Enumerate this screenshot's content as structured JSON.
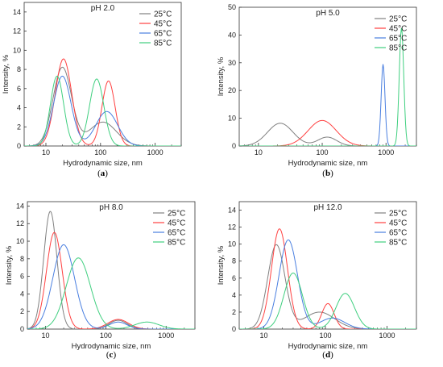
{
  "colors": {
    "25": "#808080",
    "45": "#ff4040",
    "65": "#4a7fe0",
    "85": "#3fcf7f"
  },
  "chart_data": [
    {
      "type": "line",
      "panel": "a",
      "title": "pH 2.0",
      "caption": "a",
      "xlabel": "Hydrodynamic size, nm",
      "ylabel": "Intensity, %",
      "xscale": "log",
      "xlim": [
        4,
        3000
      ],
      "ylim": [
        0,
        15
      ],
      "xticks": [
        {
          "v": 10,
          "label": "10"
        },
        {
          "v": 100,
          "label": "100"
        },
        {
          "v": 1000,
          "label": "1000"
        }
      ],
      "yticks": [
        0,
        2,
        4,
        6,
        8,
        10,
        12,
        14
      ],
      "legend_position": "top-right",
      "series": [
        {
          "name": "25°C",
          "color": "#808080",
          "peaks": [
            [
              20,
              8.2,
              0.17
            ],
            [
              110,
              2.5,
              0.25
            ]
          ]
        },
        {
          "name": "45°C",
          "color": "#ff4040",
          "peaks": [
            [
              21,
              9.1,
              0.15
            ],
            [
              140,
              6.8,
              0.12
            ]
          ]
        },
        {
          "name": "65°C",
          "color": "#4a7fe0",
          "peaks": [
            [
              20,
              7.3,
              0.16
            ],
            [
              130,
              3.6,
              0.2
            ]
          ]
        },
        {
          "name": "85°C",
          "color": "#3fcf7f",
          "peaks": [
            [
              16,
              7.3,
              0.12
            ],
            [
              85,
              7.0,
              0.13
            ]
          ]
        }
      ]
    },
    {
      "type": "line",
      "panel": "b",
      "title": "pH 5.0",
      "caption": "b",
      "xlabel": "Hydrodynamic size, nm",
      "ylabel": "Intensity, %",
      "xscale": "log",
      "xlim": [
        5,
        3000
      ],
      "ylim": [
        0,
        50
      ],
      "xticks": [
        {
          "v": 10,
          "label": "10"
        },
        {
          "v": 100,
          "label": "100"
        },
        {
          "v": 1000,
          "label": "1000"
        }
      ],
      "yticks": [
        0,
        10,
        20,
        30,
        40,
        50
      ],
      "legend_position": "top-right",
      "series": [
        {
          "name": "25°C",
          "color": "#808080",
          "peaks": [
            [
              22,
              8.2,
              0.2
            ],
            [
              120,
              3.2,
              0.15
            ]
          ]
        },
        {
          "name": "45°C",
          "color": "#ff4040",
          "peaks": [
            [
              100,
              9.2,
              0.22
            ]
          ]
        },
        {
          "name": "65°C",
          "color": "#4a7fe0",
          "peaks": [
            [
              900,
              29.5,
              0.03
            ]
          ]
        },
        {
          "name": "85°C",
          "color": "#3fcf7f",
          "peaks": [
            [
              1750,
              42.5,
              0.035
            ]
          ]
        }
      ]
    },
    {
      "type": "line",
      "panel": "c",
      "title": "pH 8.0",
      "caption": "c",
      "xlabel": "Hydrodynamic size, nm",
      "ylabel": "Intensity, %",
      "xscale": "log",
      "xlim": [
        5,
        3000
      ],
      "ylim": [
        0,
        14.5
      ],
      "xticks": [
        {
          "v": 10,
          "label": "10"
        },
        {
          "v": 100,
          "label": "100"
        },
        {
          "v": 1000,
          "label": "1000"
        }
      ],
      "yticks": [
        0,
        2,
        4,
        6,
        8,
        10,
        12,
        14
      ],
      "legend_position": "top-right",
      "series": [
        {
          "name": "25°C",
          "color": "#808080",
          "peaks": [
            [
              12,
              13.4,
              0.11
            ],
            [
              160,
              1.0,
              0.15
            ]
          ]
        },
        {
          "name": "45°C",
          "color": "#ff4040",
          "peaks": [
            [
              14,
              11.0,
              0.13
            ],
            [
              160,
              1.1,
              0.17
            ]
          ]
        },
        {
          "name": "65°C",
          "color": "#4a7fe0",
          "peaks": [
            [
              20,
              9.6,
              0.18
            ],
            [
              160,
              0.8,
              0.15
            ]
          ]
        },
        {
          "name": "85°C",
          "color": "#3fcf7f",
          "peaks": [
            [
              35,
              8.1,
              0.2
            ],
            [
              480,
              0.8,
              0.2
            ]
          ]
        }
      ]
    },
    {
      "type": "line",
      "panel": "d",
      "title": "pH 12.0",
      "caption": "d",
      "xlabel": "Hydrodynamic size, nm",
      "ylabel": "Intensity, %",
      "xscale": "log",
      "xlim": [
        4,
        3000
      ],
      "ylim": [
        0,
        15
      ],
      "xticks": [
        {
          "v": 10,
          "label": "10"
        },
        {
          "v": 100,
          "label": "100"
        },
        {
          "v": 1000,
          "label": "1000"
        }
      ],
      "yticks": [
        0,
        2,
        4,
        6,
        8,
        10,
        12,
        14
      ],
      "legend_position": "top-right",
      "series": [
        {
          "name": "25°C",
          "color": "#808080",
          "peaks": [
            [
              16,
              9.9,
              0.14
            ],
            [
              80,
              2.0,
              0.25
            ]
          ]
        },
        {
          "name": "45°C",
          "color": "#ff4040",
          "peaks": [
            [
              18,
              11.8,
              0.13
            ],
            [
              110,
              3.0,
              0.1
            ]
          ]
        },
        {
          "name": "65°C",
          "color": "#4a7fe0",
          "peaks": [
            [
              25,
              10.5,
              0.15
            ],
            [
              130,
              1.3,
              0.2
            ]
          ]
        },
        {
          "name": "85°C",
          "color": "#3fcf7f",
          "peaks": [
            [
              30,
              6.6,
              0.15
            ],
            [
              210,
              4.2,
              0.15
            ]
          ]
        }
      ]
    }
  ]
}
